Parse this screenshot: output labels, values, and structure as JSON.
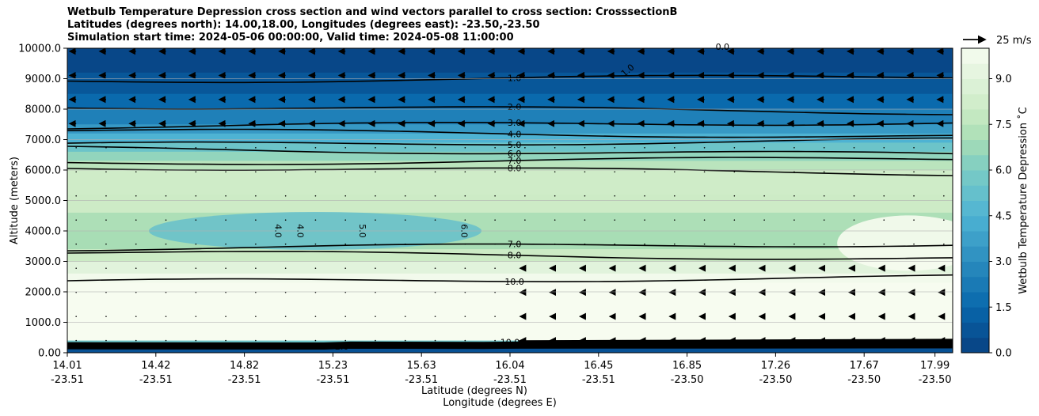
{
  "chart_data": {
    "type": "contour",
    "title_lines": [
      "Wetbulb Temperature Depression cross section and wind vectors parallel to cross section: CrosssectionB",
      "Latitudes (degrees north): 14.00,18.00, Longitudes (degrees east): -23.50,-23.50",
      "Simulation start time: 2024-05-06 00:00:00, Valid time: 2024-05-08 11:00:00"
    ],
    "ylabel": "Altitude (meters)",
    "xlabel_lat": "Latitude (degrees N)",
    "xlabel_lon": "Longitude (degrees E)",
    "ylim": [
      0,
      10000
    ],
    "y_ticks": [
      0,
      1000,
      2000,
      3000,
      4000,
      5000,
      6000,
      7000,
      8000,
      9000,
      10000
    ],
    "y_tick_labels": [
      "0.00",
      "1000.0",
      "2000.0",
      "3000.0",
      "4000.0",
      "5000.0",
      "6000.0",
      "7000.0",
      "8000.0",
      "9000.0",
      "10000.0"
    ],
    "x_ticks": [
      {
        "lat": "14.01",
        "lon": "-23.51"
      },
      {
        "lat": "14.42",
        "lon": "-23.51"
      },
      {
        "lat": "14.82",
        "lon": "-23.51"
      },
      {
        "lat": "15.23",
        "lon": "-23.51"
      },
      {
        "lat": "15.63",
        "lon": "-23.51"
      },
      {
        "lat": "16.04",
        "lon": "-23.51"
      },
      {
        "lat": "16.45",
        "lon": "-23.51"
      },
      {
        "lat": "16.85",
        "lon": "-23.50"
      },
      {
        "lat": "17.26",
        "lon": "-23.50"
      },
      {
        "lat": "17.67",
        "lon": "-23.50"
      },
      {
        "lat": "17.99",
        "lon": "-23.50"
      }
    ],
    "x_tick_fractions": [
      0,
      0.1,
      0.2,
      0.3,
      0.4,
      0.5,
      0.6,
      0.7,
      0.8,
      0.9,
      0.98
    ],
    "colorbar": {
      "label": "Wetbulb Temperature Depression ˚C",
      "range": [
        0,
        10
      ],
      "ticks": [
        0.0,
        1.5,
        3.0,
        4.5,
        6.0,
        7.5,
        9.0
      ],
      "tick_labels": [
        "0.0",
        "1.5",
        "3.0",
        "4.5",
        "6.0",
        "7.5",
        "9.0"
      ],
      "levels": 20
    },
    "wind_key": "25 m/s",
    "layer_profile": [
      {
        "alt": 10000,
        "value": 0.0
      },
      {
        "alt": 9200,
        "value": 0.5
      },
      {
        "alt": 8500,
        "value": 1.2
      },
      {
        "alt": 8000,
        "value": 2.0
      },
      {
        "alt": 7500,
        "value": 3.0
      },
      {
        "alt": 7200,
        "value": 4.0
      },
      {
        "alt": 6900,
        "value": 5.0
      },
      {
        "alt": 6600,
        "value": 6.0
      },
      {
        "alt": 6300,
        "value": 7.0
      },
      {
        "alt": 6000,
        "value": 8.0
      },
      {
        "alt": 5200,
        "value": 8.3
      },
      {
        "alt": 4600,
        "value": 7.8
      },
      {
        "alt": 4000,
        "value": 6.5
      },
      {
        "alt": 3400,
        "value": 7.5
      },
      {
        "alt": 3000,
        "value": 8.5
      },
      {
        "alt": 2600,
        "value": 9.6
      },
      {
        "alt": 2300,
        "value": 10.0
      },
      {
        "alt": 400,
        "value": 10.0
      },
      {
        "alt": 200,
        "value": 1.0
      },
      {
        "alt": 0,
        "value": 0.3
      }
    ],
    "contour_lines": [
      {
        "label": "1.0",
        "alt": 9000
      },
      {
        "label": "2.0",
        "alt": 8000
      },
      {
        "label": "3.0",
        "alt": 7500
      },
      {
        "label": "4.0",
        "alt": 7200
      },
      {
        "label": "5.0",
        "alt": 6900
      },
      {
        "label": "6.0",
        "alt": 6600
      },
      {
        "label": "7.0",
        "alt": 6300
      },
      {
        "label": "8.0",
        "alt": 6000
      },
      {
        "label": "7.0",
        "alt": 3500
      },
      {
        "label": "8.0",
        "alt": 3200
      },
      {
        "label": "10.0",
        "alt": 2400
      }
    ],
    "inline_labels": [
      "4.0",
      "4.0",
      "5.0",
      "6.0",
      "1.0",
      "0.0",
      "2.0",
      "10.0"
    ]
  }
}
